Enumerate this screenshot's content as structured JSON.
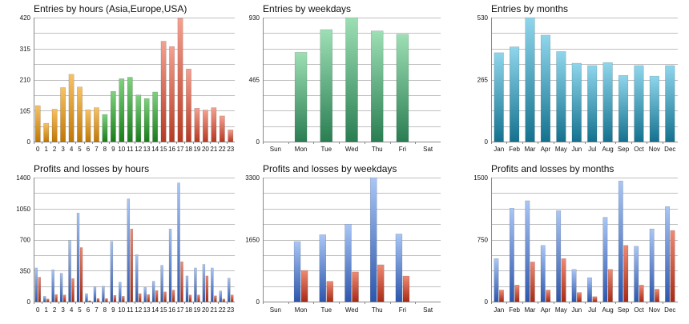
{
  "colors": {
    "orange": [
      "#f7c266",
      "#c17804"
    ],
    "green": [
      "#7ed27e",
      "#197d19"
    ],
    "red": [
      "#f5a090",
      "#b73a22"
    ],
    "teal": [
      "#9edfb5",
      "#2a7e52"
    ],
    "cyan": [
      "#8fd6ec",
      "#14728f"
    ],
    "blue": [
      "#a9c6f5",
      "#2d56ad"
    ],
    "loss": [
      "#ef8a74",
      "#a92a15"
    ]
  },
  "chart_data": [
    {
      "type": "bar",
      "title": "Entries by hours (Asia,Europe,USA)",
      "categories": [
        "0",
        "1",
        "2",
        "3",
        "4",
        "5",
        "6",
        "7",
        "8",
        "9",
        "10",
        "11",
        "12",
        "13",
        "14",
        "15",
        "16",
        "17",
        "18",
        "19",
        "20",
        "21",
        "22",
        "23"
      ],
      "values": [
        122,
        62,
        110,
        183,
        228,
        185,
        108,
        115,
        92,
        170,
        213,
        218,
        158,
        146,
        168,
        340,
        322,
        418,
        246,
        113,
        107,
        115,
        87,
        40
      ],
      "series_groups": [
        {
          "name": "Asia",
          "from": 0,
          "to": 7,
          "color": "orange"
        },
        {
          "name": "Europe",
          "from": 8,
          "to": 14,
          "color": "green"
        },
        {
          "name": "USA",
          "from": 15,
          "to": 23,
          "color": "red"
        }
      ],
      "yticks": [
        "0",
        "105",
        "210",
        "315",
        "420"
      ],
      "ylim": [
        0,
        420
      ],
      "grid": true
    },
    {
      "type": "bar",
      "title": "Entries by weekdays",
      "categories": [
        "Sun",
        "Mon",
        "Tue",
        "Wed",
        "Thu",
        "Fri",
        "Sat"
      ],
      "values": [
        0,
        670,
        840,
        930,
        830,
        805,
        0
      ],
      "color": "teal",
      "yticks": [
        "0",
        "465",
        "930"
      ],
      "ylim": [
        0,
        930
      ],
      "grid": true
    },
    {
      "type": "bar",
      "title": "Entries by months",
      "categories": [
        "Jan",
        "Feb",
        "Mar",
        "Apr",
        "May",
        "Jun",
        "Jul",
        "Aug",
        "Sep",
        "Oct",
        "Nov",
        "Dec"
      ],
      "values": [
        380,
        405,
        530,
        455,
        385,
        335,
        325,
        338,
        283,
        325,
        280,
        325
      ],
      "color": "cyan",
      "yticks": [
        "0",
        "265",
        "530"
      ],
      "ylim": [
        0,
        530
      ],
      "grid": true
    },
    {
      "type": "bar",
      "title": "Profits and losses by hours",
      "categories": [
        "0",
        "1",
        "2",
        "3",
        "4",
        "5",
        "6",
        "7",
        "8",
        "9",
        "10",
        "11",
        "12",
        "13",
        "14",
        "15",
        "16",
        "17",
        "18",
        "19",
        "20",
        "21",
        "22",
        "23"
      ],
      "series": [
        {
          "values": [
            380,
            60,
            360,
            320,
            690,
            1000,
            90,
            170,
            175,
            680,
            220,
            1160,
            530,
            160,
            230,
            410,
            820,
            1340,
            290,
            380,
            420,
            380,
            120,
            265
          ],
          "color": "blue"
        },
        {
          "values": [
            275,
            30,
            80,
            75,
            260,
            610,
            10,
            35,
            35,
            70,
            60,
            820,
            90,
            80,
            125,
            110,
            130,
            450,
            75,
            75,
            290,
            65,
            30,
            75
          ],
          "color": "loss"
        }
      ],
      "yticks": [
        "0",
        "350",
        "700",
        "1050",
        "1400"
      ],
      "ylim": [
        0,
        1400
      ],
      "grid": true
    },
    {
      "type": "bar",
      "title": "Profits and losses by weekdays",
      "categories": [
        "Sun",
        "Mon",
        "Tue",
        "Wed",
        "Thu",
        "Fri",
        "Sat"
      ],
      "series": [
        {
          "values": [
            0,
            1600,
            1780,
            2060,
            3300,
            1800,
            0
          ],
          "color": "blue"
        },
        {
          "values": [
            0,
            830,
            540,
            790,
            980,
            680,
            0
          ],
          "color": "loss"
        }
      ],
      "yticks": [
        "0",
        "1650",
        "3300"
      ],
      "ylim": [
        0,
        3300
      ],
      "grid": true
    },
    {
      "type": "bar",
      "title": "Profits and losses by months",
      "categories": [
        "Jan",
        "Feb",
        "Mar",
        "Apr",
        "May",
        "Jun",
        "Jul",
        "Aug",
        "Sep",
        "Oct",
        "Nov",
        "Dec"
      ],
      "series": [
        {
          "values": [
            520,
            1130,
            1220,
            680,
            1100,
            390,
            290,
            1020,
            1460,
            670,
            880,
            1150
          ],
          "color": "blue"
        },
        {
          "values": [
            140,
            200,
            480,
            140,
            520,
            110,
            60,
            390,
            680,
            200,
            150,
            860
          ],
          "color": "loss"
        }
      ],
      "yticks": [
        "0",
        "750",
        "1500"
      ],
      "ylim": [
        0,
        1500
      ],
      "grid": true
    }
  ]
}
